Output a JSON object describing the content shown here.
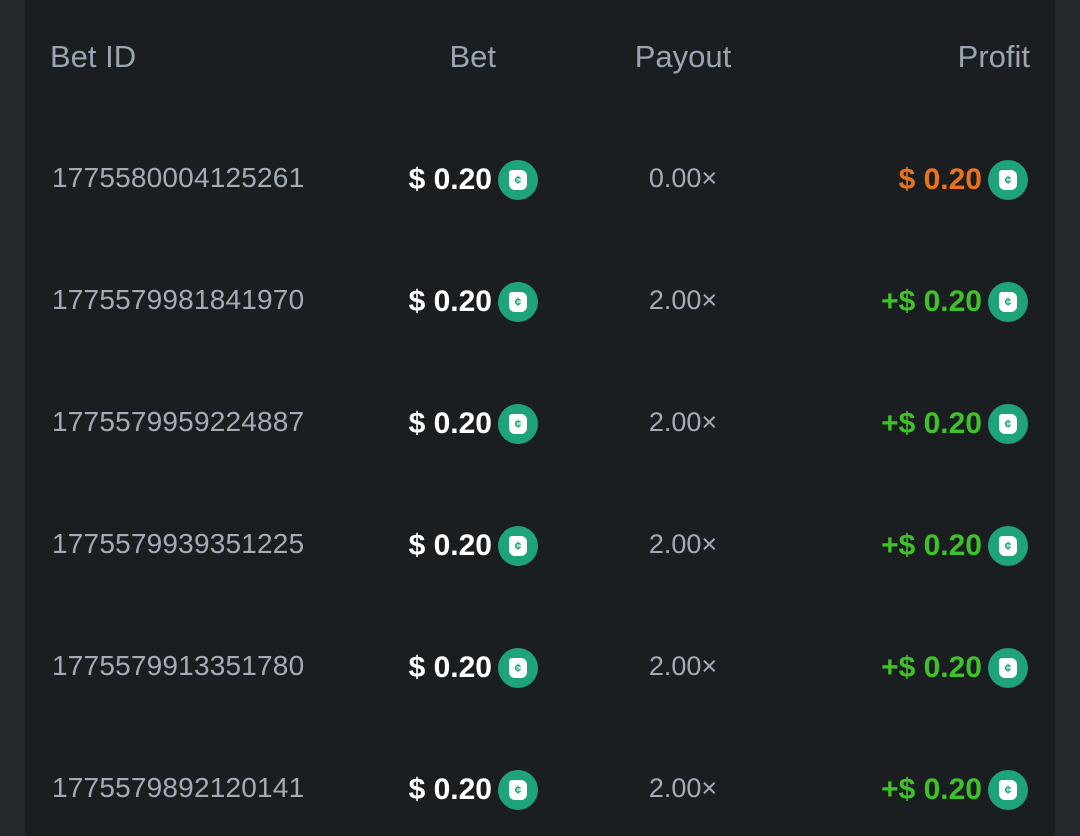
{
  "header": {
    "bet_id": "Bet ID",
    "bet": "Bet",
    "payout": "Payout",
    "profit": "Profit"
  },
  "colors": {
    "loss": "#e8731c",
    "win": "#3fc12a",
    "coin": "#1fa37a"
  },
  "rows": [
    {
      "id": "1775580004125261",
      "bet": "$ 0.20",
      "payout": "0.00×",
      "profit": "$ 0.20",
      "result": "loss"
    },
    {
      "id": "1775579981841970",
      "bet": "$ 0.20",
      "payout": "2.00×",
      "profit": "+$ 0.20",
      "result": "win"
    },
    {
      "id": "1775579959224887",
      "bet": "$ 0.20",
      "payout": "2.00×",
      "profit": "+$ 0.20",
      "result": "win"
    },
    {
      "id": "1775579939351225",
      "bet": "$ 0.20",
      "payout": "2.00×",
      "profit": "+$ 0.20",
      "result": "win"
    },
    {
      "id": "1775579913351780",
      "bet": "$ 0.20",
      "payout": "2.00×",
      "profit": "+$ 0.20",
      "result": "win"
    },
    {
      "id": "1775579892120141",
      "bet": "$ 0.20",
      "payout": "2.00×",
      "profit": "+$ 0.20",
      "result": "win"
    }
  ]
}
